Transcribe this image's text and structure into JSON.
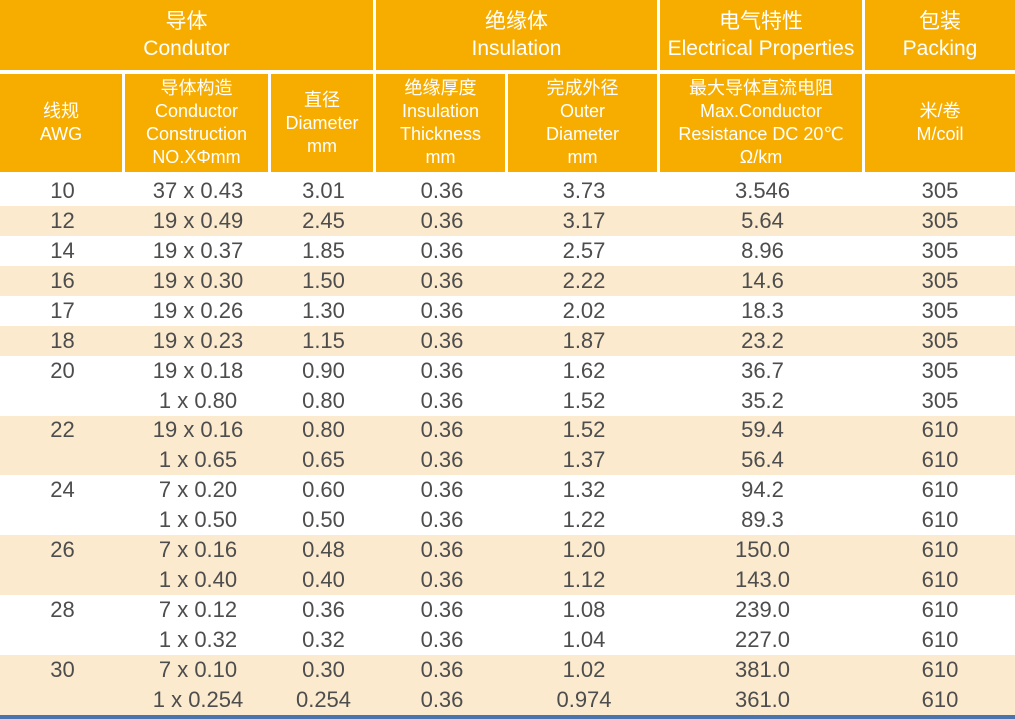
{
  "colors": {
    "header_orange": "#F7AC00",
    "row_shaded_cream": "#FBEACD",
    "row_white": "#FFFFFF",
    "data_text": "#4D4D4D",
    "header_text": "#FFFFFF",
    "bottom_bar_blue": "#4A74AE"
  },
  "table": {
    "groups": [
      {
        "label": "导体\nCondutor"
      },
      {
        "label": "绝缘体\nInsulation"
      },
      {
        "label": "电气特性\nElectrical Properties"
      },
      {
        "label": "包装\nPacking"
      }
    ],
    "columns": [
      {
        "label": "线规\nAWG"
      },
      {
        "label": "导体构造\nConductor\nConstruction\nNO.XΦmm"
      },
      {
        "label": "直径\nDiameter\nmm"
      },
      {
        "label": "绝缘厚度\nInsulation\nThickness\nmm"
      },
      {
        "label": "完成外径\nOuter\nDiameter\nmm"
      },
      {
        "label": "最大导体直流电阻\nMax.Conductor\nResistance DC 20℃\nΩ/km"
      },
      {
        "label": "米/卷\nM/coil"
      }
    ],
    "rows": [
      [
        "10",
        "37 x 0.43",
        "3.01",
        "0.36",
        "3.73",
        "3.546",
        "305"
      ],
      [
        "12",
        "19 x 0.49",
        "2.45",
        "0.36",
        "3.17",
        "5.64",
        "305"
      ],
      [
        "14",
        "19 x 0.37",
        "1.85",
        "0.36",
        "2.57",
        "8.96",
        "305"
      ],
      [
        "16",
        "19 x 0.30",
        "1.50",
        "0.36",
        "2.22",
        "14.6",
        "305"
      ],
      [
        "17",
        "19 x 0.26",
        "1.30",
        "0.36",
        "2.02",
        "18.3",
        "305"
      ],
      [
        "18",
        "19 x 0.23",
        "1.15",
        "0.36",
        "1.87",
        "23.2",
        "305"
      ],
      [
        "20",
        "19 x 0.18",
        "0.90",
        "0.36",
        "1.62",
        "36.7",
        "305"
      ],
      [
        "",
        "1 x 0.80",
        "0.80",
        "0.36",
        "1.52",
        "35.2",
        "305"
      ],
      [
        "22",
        "19 x 0.16",
        "0.80",
        "0.36",
        "1.52",
        "59.4",
        "610"
      ],
      [
        "",
        "1 x 0.65",
        "0.65",
        "0.36",
        "1.37",
        "56.4",
        "610"
      ],
      [
        "24",
        "7 x 0.20",
        "0.60",
        "0.36",
        "1.32",
        "94.2",
        "610"
      ],
      [
        "",
        "1 x 0.50",
        "0.50",
        "0.36",
        "1.22",
        "89.3",
        "610"
      ],
      [
        "26",
        "7 x 0.16",
        "0.48",
        "0.36",
        "1.20",
        "150.0",
        "610"
      ],
      [
        "",
        "1 x 0.40",
        "0.40",
        "0.36",
        "1.12",
        "143.0",
        "610"
      ],
      [
        "28",
        "7 x 0.12",
        "0.36",
        "0.36",
        "1.08",
        "239.0",
        "610"
      ],
      [
        "",
        "1 x 0.32",
        "0.32",
        "0.36",
        "1.04",
        "227.0",
        "610"
      ],
      [
        "30",
        "7 x 0.10",
        "0.30",
        "0.36",
        "1.02",
        "381.0",
        "610"
      ],
      [
        "",
        "1 x 0.254",
        "0.254",
        "0.36",
        "0.974",
        "361.0",
        "610"
      ]
    ]
  }
}
